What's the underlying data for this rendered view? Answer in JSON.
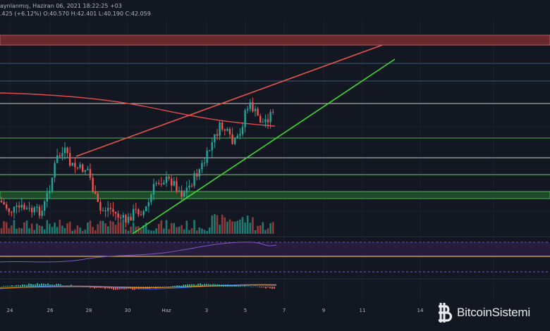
{
  "header": {
    "line1": "aynlanmış, Haziran 06, 2021 18:22:25 +03",
    "line2": ".425 (+6.12%) O:40.570 H:42.401 L:40.190 C:42.059"
  },
  "x_axis": {
    "labels": [
      "24",
      "26",
      "28",
      "30",
      "Haz",
      "3",
      "5",
      "7",
      "9",
      "11",
      "14"
    ]
  },
  "watermark": {
    "text": "BitcoinSistemi",
    "icon": "bitcoin-logo-icon"
  },
  "colors": {
    "background": "#131722",
    "up": "#26a69a",
    "down": "#ef5350",
    "resistance_trendline": "#e5554a",
    "support_trendline": "#3ddc2f",
    "resistance_zone": "#6b2a2e",
    "support_zone": "#1f4a2a",
    "rsi_band": "#261d3d"
  }
}
